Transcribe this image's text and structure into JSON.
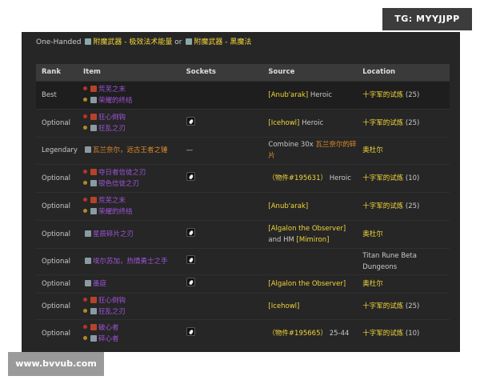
{
  "watermarks": {
    "top": "TG: MYYJJPP",
    "bottom": "www.bvvub.com"
  },
  "heading": {
    "prefix": "One-Handed",
    "enchant1": "附魔武器 - 极效法术能量",
    "or": "or",
    "enchant2": "附魔武器 - 黑魔法"
  },
  "columns": [
    "Rank",
    "Item",
    "Sockets",
    "Source",
    "Location"
  ],
  "rows": [
    {
      "rank": "Best",
      "items": [
        {
          "faction": "horde",
          "name": "荒芜之末"
        },
        {
          "faction": "alliance",
          "name": "荣耀的终结"
        }
      ],
      "socket": false,
      "source": [
        {
          "t": "[Anub'arak]",
          "c": "y"
        },
        {
          "t": " Heroic"
        }
      ],
      "location": "十字军的试炼",
      "loc_suffix": " (25)"
    },
    {
      "rank": "Optional",
      "items": [
        {
          "faction": "horde",
          "name": "狂心倒钩"
        },
        {
          "faction": "alliance",
          "name": "狂乱之刃"
        }
      ],
      "socket": true,
      "source": [
        {
          "t": "[Icehowl]",
          "c": "y"
        },
        {
          "t": " Heroic"
        }
      ],
      "location": "十字军的试炼",
      "loc_suffix": " (25)"
    },
    {
      "rank": "Legendary",
      "items": [
        {
          "name": "瓦兰奈尔，远古王者之锤",
          "quality": "legendary"
        }
      ],
      "socket_text": "—",
      "source": [
        {
          "t": "Combine 30x "
        },
        {
          "t": "瓦兰奈尔的碎片",
          "c": "o"
        }
      ],
      "location": "奥杜尔",
      "loc_suffix": ""
    },
    {
      "rank": "Optional",
      "items": [
        {
          "faction": "horde",
          "name": "夺日者信徒之刃"
        },
        {
          "faction": "alliance",
          "name": "银色信徒之刃"
        }
      ],
      "socket": true,
      "source": [
        {
          "t": "（物件#195631）",
          "c": "y"
        },
        {
          "t": "  Heroic"
        }
      ],
      "location": "十字军的试炼",
      "loc_suffix": " (10)"
    },
    {
      "rank": "Optional",
      "items": [
        {
          "faction": "horde",
          "name": "荒芜之末"
        },
        {
          "faction": "alliance",
          "name": "荣耀的终结"
        }
      ],
      "socket": false,
      "source": [
        {
          "t": "[Anub'arak]",
          "c": "y"
        }
      ],
      "location": "十字军的试炼",
      "loc_suffix": " (25)"
    },
    {
      "rank": "Optional",
      "items": [
        {
          "name": "星辰碎片之刃"
        }
      ],
      "socket": true,
      "source": [
        {
          "t": "[Algalon the Observer]",
          "c": "y"
        },
        {
          "t": " and HM "
        },
        {
          "t": "[Mimiron]",
          "c": "y"
        }
      ],
      "location": "奥杜尔",
      "loc_suffix": ""
    },
    {
      "rank": "Optional",
      "items": [
        {
          "name": "埃尔苏加，热情勇士之手"
        }
      ],
      "socket": true,
      "source": [],
      "location_plain": "Titan Rune Beta Dungeons"
    },
    {
      "rank": "Optional",
      "items": [
        {
          "name": "墨庭"
        }
      ],
      "socket": true,
      "source": [
        {
          "t": "[Algalon the Observer]",
          "c": "y"
        }
      ],
      "location": "奥杜尔",
      "loc_suffix": ""
    },
    {
      "rank": "Optional",
      "items": [
        {
          "faction": "horde",
          "name": "狂心倒钩"
        },
        {
          "faction": "alliance",
          "name": "狂乱之刃"
        }
      ],
      "socket": false,
      "source": [
        {
          "t": "[Icehowl]",
          "c": "y"
        }
      ],
      "location": "十字军的试炼",
      "loc_suffix": " (25)"
    },
    {
      "rank": "Optional",
      "items": [
        {
          "faction": "horde",
          "name": "破心者"
        },
        {
          "faction": "alliance",
          "name": "碎心者"
        }
      ],
      "socket": true,
      "source": [
        {
          "t": "（物件#195665）",
          "c": "y"
        },
        {
          "t": "  25-44"
        }
      ],
      "location": "十字军的试炼",
      "loc_suffix": " (10)"
    }
  ],
  "colors": {
    "panel": "#262626",
    "header": "#3a3a3a",
    "epic": "#9d54d8",
    "legendary": "#e08a2b",
    "link": "#f1d53a"
  }
}
